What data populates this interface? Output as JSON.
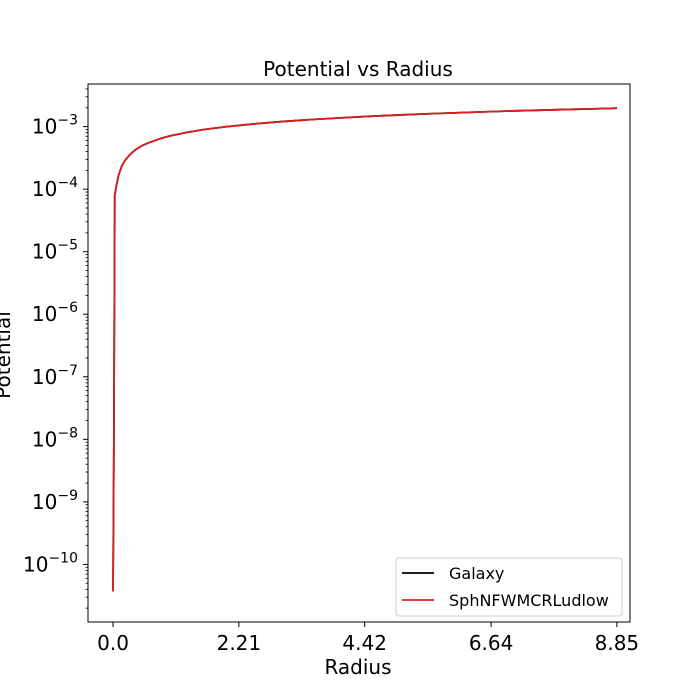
{
  "chart_data": {
    "type": "line",
    "title": "Potential vs Radius",
    "xlabel": "Radius",
    "ylabel": "Potential",
    "xlim": [
      -0.44,
      9.08
    ],
    "ylim": [
      1.2e-11,
      0.0048
    ],
    "yscale": "log",
    "xticks": [
      0.0,
      2.21,
      4.42,
      6.64,
      8.85
    ],
    "xtick_labels": [
      "0.0",
      "2.21",
      "4.42",
      "6.64",
      "8.85"
    ],
    "yticks_exp": [
      -10,
      -9,
      -8,
      -7,
      -6,
      -5,
      -4,
      -3
    ],
    "ytick_base": "10",
    "legend_position": "lower-right",
    "series": [
      {
        "name": "Galaxy",
        "color": "#000000",
        "x": [
          0.0,
          0.015,
          0.03,
          0.06,
          0.1,
          0.15,
          0.2,
          0.3,
          0.4,
          0.5,
          0.6,
          0.8,
          1.0,
          1.3,
          1.6,
          2.0,
          2.5,
          3.0,
          3.5,
          4.0,
          4.5,
          5.0,
          5.5,
          6.0,
          6.5,
          7.0,
          7.5,
          8.0,
          8.5,
          8.85
        ],
        "y": [
          3.7e-11,
          1e-08,
          8e-05,
          0.000115,
          0.00017,
          0.00023,
          0.00028,
          0.00036,
          0.00043,
          0.00049,
          0.00054,
          0.00063,
          0.00071,
          0.00081,
          0.0009,
          0.001,
          0.00111,
          0.00121,
          0.0013,
          0.00138,
          0.00146,
          0.00153,
          0.0016,
          0.00166,
          0.00172,
          0.00178,
          0.00183,
          0.00188,
          0.00193,
          0.00197
        ]
      },
      {
        "name": "SphNFWMCRLudlow",
        "color": "#d62020",
        "x": [
          0.0,
          0.015,
          0.03,
          0.06,
          0.1,
          0.15,
          0.2,
          0.3,
          0.4,
          0.5,
          0.6,
          0.8,
          1.0,
          1.3,
          1.6,
          2.0,
          2.5,
          3.0,
          3.5,
          4.0,
          4.5,
          5.0,
          5.5,
          6.0,
          6.5,
          7.0,
          7.5,
          8.0,
          8.5,
          8.85
        ],
        "y": [
          3.7e-11,
          1e-08,
          8e-05,
          0.000115,
          0.00017,
          0.00023,
          0.00028,
          0.00036,
          0.00043,
          0.00049,
          0.00054,
          0.00063,
          0.00071,
          0.00081,
          0.0009,
          0.001,
          0.00111,
          0.00121,
          0.0013,
          0.00138,
          0.00146,
          0.00153,
          0.0016,
          0.00166,
          0.00172,
          0.00178,
          0.00183,
          0.00188,
          0.00193,
          0.00197
        ]
      }
    ]
  }
}
